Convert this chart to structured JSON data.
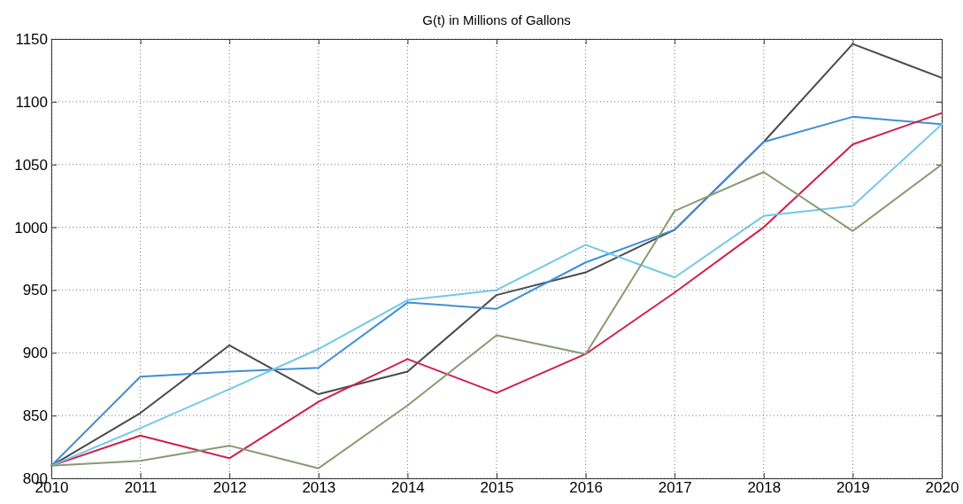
{
  "chart_data": {
    "type": "line",
    "title": "G(t) in Millions of Gallons",
    "x": [
      2010,
      2011,
      2012,
      2013,
      2014,
      2015,
      2016,
      2017,
      2018,
      2019,
      2020
    ],
    "series": [
      {
        "color": "#4a4a4a",
        "values": [
          810,
          852,
          906,
          867,
          885,
          946,
          964,
          998,
          1068,
          1146,
          1119
        ]
      },
      {
        "color": "#3f8fd8",
        "values": [
          810,
          881,
          885,
          888,
          940,
          935,
          972,
          998,
          1068,
          1088,
          1082
        ]
      },
      {
        "color": "#d01e4c",
        "values": [
          810,
          834,
          816,
          861,
          895,
          868,
          899,
          948,
          1000,
          1066,
          1091
        ]
      },
      {
        "color": "#70c8e8",
        "values": [
          810,
          840,
          871,
          903,
          942,
          950,
          986,
          960,
          1009,
          1017,
          1082
        ]
      },
      {
        "color": "#879a72",
        "values": [
          810,
          814,
          826,
          808,
          858,
          914,
          899,
          1013,
          1044,
          997,
          1050
        ]
      }
    ],
    "xlim": [
      2010,
      2020
    ],
    "xticks": [
      2010,
      2011,
      2012,
      2013,
      2014,
      2015,
      2016,
      2017,
      2018,
      2019,
      2020
    ],
    "ylim": [
      800,
      1150
    ],
    "yticks": [
      800,
      850,
      900,
      950,
      1000,
      1050,
      1100,
      1150
    ],
    "grid": true,
    "line_style": "solid",
    "marker": "none"
  }
}
